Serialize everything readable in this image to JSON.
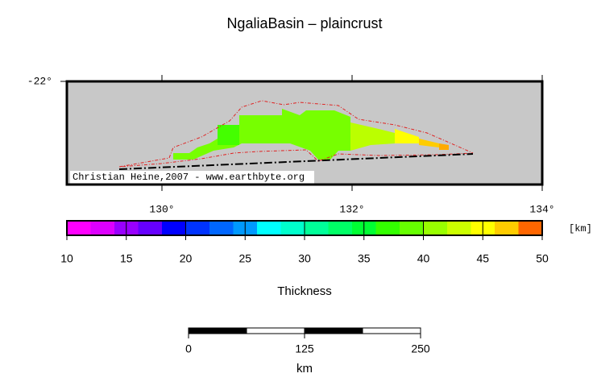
{
  "title": "NgaliaBasin – plaincrust",
  "map": {
    "lonlim": [
      129,
      134
    ],
    "latlim": [
      -23,
      -22
    ],
    "lonticks": [
      {
        "value": 130,
        "label": "130°"
      },
      {
        "value": 132,
        "label": "132°"
      },
      {
        "value": 134,
        "label": "134°"
      }
    ],
    "latticks": [
      {
        "value": -22,
        "label": "-22°"
      }
    ],
    "credit": "Christian Heine,2007 - www.earthbyte.org"
  },
  "colorbar": {
    "lim": [
      10,
      50
    ],
    "ticks": [
      10,
      15,
      20,
      25,
      30,
      35,
      40,
      45,
      50
    ],
    "unit": "[km]",
    "label": "Thickness",
    "colors": [
      "#ff00ff",
      "#dd00ff",
      "#9900ff",
      "#6600ff",
      "#0000ff",
      "#0033ff",
      "#0066ff",
      "#0099ff",
      "#00ffff",
      "#00ffcc",
      "#00ff99",
      "#00ff66",
      "#00ff33",
      "#33ff00",
      "#66ff00",
      "#99ff00",
      "#ccff00",
      "#ffff00",
      "#ffcc00",
      "#ff6600"
    ]
  },
  "scalebar": {
    "ticks": [
      0,
      125,
      250
    ],
    "unit": "km"
  }
}
